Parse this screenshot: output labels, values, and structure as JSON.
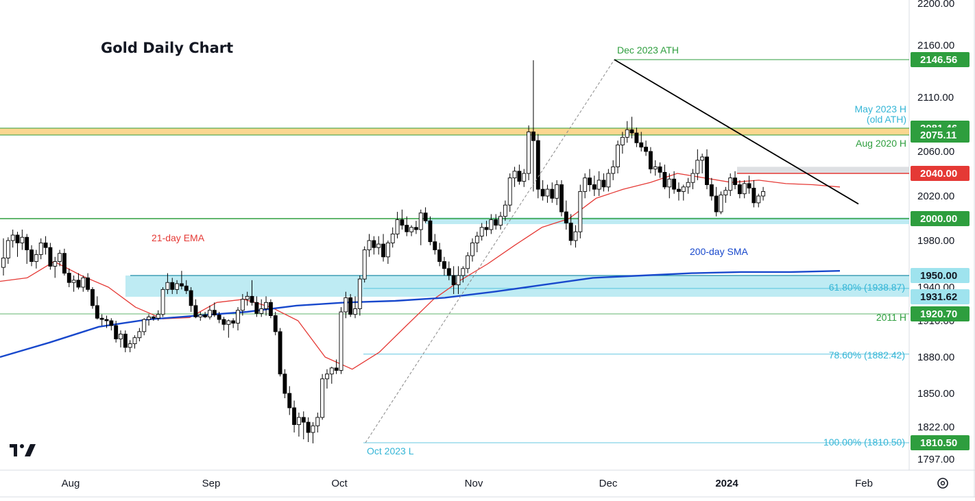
{
  "title": "Gold Daily Chart",
  "colors": {
    "bull_body": "#ffffff",
    "bear_body": "#000000",
    "candle_outline": "#000000",
    "ema": "#e53935",
    "sma": "#1848cc",
    "support_band": "#aee6f0",
    "resistance_band": "#f9c96b",
    "green_line": "#2e9e3e",
    "red_level": "#e53935",
    "fib": "#33b5d6",
    "trendline": "#000000"
  },
  "annotations": {
    "dec_ath": "Dec 2023 ATH",
    "may_h_1": "May 2023 H",
    "may_h_2": "(old ATH)",
    "aug_2020_h": "Aug 2020 H",
    "ema_label": "21-day EMA",
    "sma_label": "200-day SMA",
    "fib_618": "61.80% (1938.87)",
    "fib_786": "78.60% (1882.42)",
    "fib_100": "100.00% (1810.50)",
    "h_2011": "2011 H",
    "oct_low": "Oct 2023 L"
  },
  "chart_data": {
    "type": "candlestick",
    "title": "Gold Daily Chart",
    "y_axis": {
      "position": "right",
      "ticks": [
        "2200.00",
        "2160.00",
        "2110.00",
        "2060.00",
        "2020.00",
        "1980.00",
        "1940.00",
        "1910.00",
        "1880.00",
        "1850.00",
        "1822.00",
        "1797.00"
      ]
    },
    "x_axis": {
      "ticks": [
        {
          "label": "Aug",
          "bold": false
        },
        {
          "label": "Sep",
          "bold": false
        },
        {
          "label": "Oct",
          "bold": false
        },
        {
          "label": "Nov",
          "bold": false
        },
        {
          "label": "Dec",
          "bold": false
        },
        {
          "label": "2024",
          "bold": true
        },
        {
          "label": "Feb",
          "bold": false
        }
      ]
    },
    "price_badges": [
      {
        "label": "2146.56",
        "value": 2146.56,
        "style": "green"
      },
      {
        "label": "2081.46",
        "value": 2081.46,
        "style": "green"
      },
      {
        "label": "2075.11",
        "value": 2075.11,
        "style": "green"
      },
      {
        "label": "2040.00",
        "value": 2040.0,
        "style": "red"
      },
      {
        "label": "2000.00",
        "value": 2000.0,
        "style": "green"
      },
      {
        "label": "1950.00",
        "value": 1950.0,
        "style": "cyan"
      },
      {
        "label": "1931.62",
        "value": 1931.62,
        "style": "cyan"
      },
      {
        "label": "1920.70",
        "value": 1920.7,
        "style": "green"
      },
      {
        "label": "1810.50",
        "value": 1810.5,
        "style": "green"
      }
    ],
    "levels": {
      "dec_ath": 2146.56,
      "old_ath_band": [
        2075.11,
        2081.46
      ],
      "aug_2020_high": 2075.11,
      "resistance": 2040.0,
      "support": 2000.0,
      "support_band_upper": [
        1995.0,
        2001.0
      ],
      "support_band_lower": [
        1931.62,
        1950.0
      ],
      "fib_61_8": 1938.87,
      "fib_78_6": 1882.42,
      "fib_100": 1810.5,
      "high_2011": 1920.7
    },
    "candles": [
      [
        1957,
        1982,
        1950,
        1965
      ],
      [
        1965,
        1983,
        1960,
        1980
      ],
      [
        1980,
        1990,
        1974,
        1985
      ],
      [
        1985,
        1988,
        1966,
        1978
      ],
      [
        1978,
        1990,
        1972,
        1983
      ],
      [
        1983,
        1986,
        1960,
        1972
      ],
      [
        1972,
        1976,
        1958,
        1962
      ],
      [
        1962,
        1972,
        1956,
        1968
      ],
      [
        1968,
        1982,
        1964,
        1978
      ],
      [
        1978,
        1984,
        1968,
        1974
      ],
      [
        1974,
        1978,
        1955,
        1958
      ],
      [
        1958,
        1966,
        1948,
        1962
      ],
      [
        1962,
        1972,
        1958,
        1969
      ],
      [
        1969,
        1973,
        1950,
        1952
      ],
      [
        1952,
        1956,
        1940,
        1944
      ],
      [
        1944,
        1950,
        1936,
        1946
      ],
      [
        1946,
        1952,
        1938,
        1940
      ],
      [
        1940,
        1950,
        1936,
        1948
      ],
      [
        1948,
        1952,
        1936,
        1938
      ],
      [
        1938,
        1940,
        1924,
        1926
      ],
      [
        1926,
        1932,
        1912,
        1914
      ],
      [
        1914,
        1920,
        1906,
        1912
      ],
      [
        1912,
        1918,
        1904,
        1910
      ],
      [
        1910,
        1914,
        1902,
        1906
      ],
      [
        1906,
        1910,
        1892,
        1895
      ],
      [
        1895,
        1902,
        1888,
        1899
      ],
      [
        1899,
        1902,
        1884,
        1888
      ],
      [
        1888,
        1894,
        1884,
        1891
      ],
      [
        1891,
        1898,
        1887,
        1896
      ],
      [
        1896,
        1904,
        1893,
        1901
      ],
      [
        1901,
        1914,
        1898,
        1912
      ],
      [
        1912,
        1920,
        1906,
        1916
      ],
      [
        1916,
        1918,
        1910,
        1914
      ],
      [
        1914,
        1923,
        1910,
        1920
      ],
      [
        1920,
        1940,
        1916,
        1938
      ],
      [
        1938,
        1952,
        1934,
        1944
      ],
      [
        1944,
        1948,
        1934,
        1938
      ],
      [
        1938,
        1946,
        1934,
        1943
      ],
      [
        1943,
        1954,
        1938,
        1941
      ],
      [
        1941,
        1946,
        1934,
        1937
      ],
      [
        1937,
        1940,
        1922,
        1926
      ],
      [
        1926,
        1930,
        1914,
        1916
      ],
      [
        1916,
        1922,
        1910,
        1919
      ],
      [
        1919,
        1922,
        1914,
        1916
      ],
      [
        1916,
        1926,
        1912,
        1923
      ],
      [
        1923,
        1928,
        1916,
        1919
      ],
      [
        1919,
        1922,
        1908,
        1912
      ],
      [
        1912,
        1916,
        1902,
        1907
      ],
      [
        1907,
        1912,
        1896,
        1910
      ],
      [
        1910,
        1914,
        1904,
        1908
      ],
      [
        1908,
        1925,
        1902,
        1923
      ],
      [
        1923,
        1934,
        1918,
        1930
      ],
      [
        1930,
        1936,
        1926,
        1932
      ],
      [
        1932,
        1946,
        1926,
        1928
      ],
      [
        1928,
        1932,
        1916,
        1921
      ],
      [
        1921,
        1930,
        1916,
        1924
      ],
      [
        1924,
        1932,
        1918,
        1928
      ],
      [
        1928,
        1930,
        1914,
        1918
      ],
      [
        1918,
        1922,
        1898,
        1901
      ],
      [
        1901,
        1904,
        1864,
        1866
      ],
      [
        1866,
        1870,
        1846,
        1850
      ],
      [
        1850,
        1856,
        1832,
        1838
      ],
      [
        1838,
        1844,
        1818,
        1824
      ],
      [
        1824,
        1834,
        1815,
        1830
      ],
      [
        1830,
        1835,
        1813,
        1826
      ],
      [
        1826,
        1830,
        1811,
        1818
      ],
      [
        1818,
        1826,
        1810,
        1823
      ],
      [
        1823,
        1834,
        1818,
        1830
      ],
      [
        1830,
        1866,
        1828,
        1862
      ],
      [
        1862,
        1870,
        1854,
        1866
      ],
      [
        1866,
        1872,
        1858,
        1871
      ],
      [
        1871,
        1878,
        1866,
        1869
      ],
      [
        1869,
        1925,
        1866,
        1922
      ],
      [
        1922,
        1936,
        1914,
        1931
      ],
      [
        1931,
        1934,
        1916,
        1920
      ],
      [
        1920,
        1932,
        1914,
        1924
      ],
      [
        1924,
        1950,
        1918,
        1947
      ],
      [
        1947,
        1975,
        1944,
        1972
      ],
      [
        1972,
        1986,
        1966,
        1980
      ],
      [
        1980,
        1984,
        1968,
        1974
      ],
      [
        1974,
        1984,
        1968,
        1977
      ],
      [
        1977,
        1986,
        1962,
        1966
      ],
      [
        1966,
        1980,
        1960,
        1978
      ],
      [
        1978,
        1992,
        1974,
        1986
      ],
      [
        1986,
        2006,
        1982,
        1999
      ],
      [
        1999,
        2008,
        1990,
        1994
      ],
      [
        1994,
        2002,
        1984,
        1988
      ],
      [
        1988,
        1994,
        1984,
        1992
      ],
      [
        1992,
        1998,
        1986,
        1990
      ],
      [
        1990,
        2008,
        1976,
        2005
      ],
      [
        2005,
        2010,
        1996,
        1998
      ],
      [
        1998,
        2002,
        1976,
        1979
      ],
      [
        1979,
        1986,
        1968,
        1972
      ],
      [
        1972,
        1978,
        1958,
        1962
      ],
      [
        1962,
        1966,
        1950,
        1956
      ],
      [
        1956,
        1962,
        1946,
        1950
      ],
      [
        1950,
        1958,
        1934,
        1942
      ],
      [
        1942,
        1958,
        1934,
        1950
      ],
      [
        1950,
        1958,
        1944,
        1956
      ],
      [
        1956,
        1970,
        1952,
        1967
      ],
      [
        1967,
        1982,
        1962,
        1978
      ],
      [
        1978,
        1988,
        1970,
        1984
      ],
      [
        1984,
        1996,
        1980,
        1992
      ],
      [
        1992,
        1998,
        1984,
        1990
      ],
      [
        1990,
        2004,
        1986,
        1999
      ],
      [
        1999,
        2004,
        1990,
        1994
      ],
      [
        1994,
        2006,
        1990,
        2002
      ],
      [
        2002,
        2016,
        1998,
        2012
      ],
      [
        2012,
        2040,
        2006,
        2036
      ],
      [
        2036,
        2046,
        2028,
        2042
      ],
      [
        2042,
        2048,
        2030,
        2033
      ],
      [
        2033,
        2044,
        2028,
        2040
      ],
      [
        2040,
        2084,
        2034,
        2078
      ],
      [
        2078,
        2146,
        2024,
        2070
      ],
      [
        2070,
        2076,
        2018,
        2026
      ],
      [
        2026,
        2034,
        2016,
        2020
      ],
      [
        2020,
        2030,
        2014,
        2026
      ],
      [
        2026,
        2032,
        2014,
        2018
      ],
      [
        2018,
        2034,
        2012,
        2030
      ],
      [
        2030,
        2034,
        2002,
        2006
      ],
      [
        2006,
        2016,
        1990,
        1996
      ],
      [
        1996,
        2004,
        1976,
        1980
      ],
      [
        1980,
        1994,
        1974,
        1988
      ],
      [
        1988,
        2030,
        1982,
        2024
      ],
      [
        2024,
        2040,
        2018,
        2036
      ],
      [
        2036,
        2044,
        2024,
        2030
      ],
      [
        2030,
        2038,
        2020,
        2026
      ],
      [
        2026,
        2042,
        2020,
        2034
      ],
      [
        2034,
        2040,
        2024,
        2028
      ],
      [
        2028,
        2044,
        2024,
        2040
      ],
      [
        2040,
        2052,
        2034,
        2046
      ],
      [
        2046,
        2070,
        2040,
        2066
      ],
      [
        2066,
        2078,
        2058,
        2073
      ],
      [
        2073,
        2088,
        2068,
        2080
      ],
      [
        2080,
        2092,
        2072,
        2077
      ],
      [
        2077,
        2082,
        2064,
        2068
      ],
      [
        2068,
        2078,
        2060,
        2064
      ],
      [
        2064,
        2070,
        2056,
        2060
      ],
      [
        2060,
        2064,
        2040,
        2044
      ],
      [
        2044,
        2052,
        2038,
        2046
      ],
      [
        2046,
        2050,
        2036,
        2041
      ],
      [
        2041,
        2048,
        2026,
        2028
      ],
      [
        2028,
        2040,
        2018,
        2035
      ],
      [
        2035,
        2042,
        2022,
        2026
      ],
      [
        2026,
        2032,
        2016,
        2024
      ],
      [
        2024,
        2030,
        2016,
        2028
      ],
      [
        2028,
        2036,
        2022,
        2032
      ],
      [
        2032,
        2044,
        2026,
        2040
      ],
      [
        2040,
        2062,
        2034,
        2052
      ],
      [
        2052,
        2058,
        2040,
        2055
      ],
      [
        2055,
        2062,
        2026,
        2030
      ],
      [
        2030,
        2036,
        2016,
        2020
      ],
      [
        2020,
        2028,
        2002,
        2006
      ],
      [
        2006,
        2024,
        2004,
        2021
      ],
      [
        2021,
        2028,
        2014,
        2025
      ],
      [
        2025,
        2040,
        2020,
        2036
      ],
      [
        2036,
        2042,
        2026,
        2030
      ],
      [
        2030,
        2034,
        2018,
        2022
      ],
      [
        2022,
        2034,
        2018,
        2031
      ],
      [
        2031,
        2038,
        2022,
        2027
      ],
      [
        2027,
        2034,
        2010,
        2014
      ],
      [
        2014,
        2022,
        2010,
        2020
      ],
      [
        2020,
        2028,
        2016,
        2024
      ]
    ],
    "ema_21_ref": [
      1945,
      1948,
      1962,
      1950,
      1940,
      1925,
      1913,
      1915,
      1928,
      1930,
      1925,
      1910,
      1880,
      1870,
      1884,
      1906,
      1930,
      1946,
      1960,
      1976,
      1992,
      2000,
      2018,
      2026,
      2032,
      2040,
      2036,
      2032,
      2034,
      2031,
      2030,
      2028
    ],
    "sma_200_ref": [
      1880,
      1892,
      1905,
      1912,
      1918,
      1922,
      1926,
      1928,
      1929,
      1931,
      1936,
      1942,
      1948,
      1950,
      1952,
      1953,
      1953,
      1954
    ],
    "trendline": [
      [
        2146.56,
        "Dec ATH"
      ],
      [
        2015,
        "late Jan"
      ]
    ],
    "fib_retracement_line": [
      [
        1810.5,
        "Oct low"
      ],
      [
        2146.56,
        "Dec high"
      ]
    ]
  }
}
